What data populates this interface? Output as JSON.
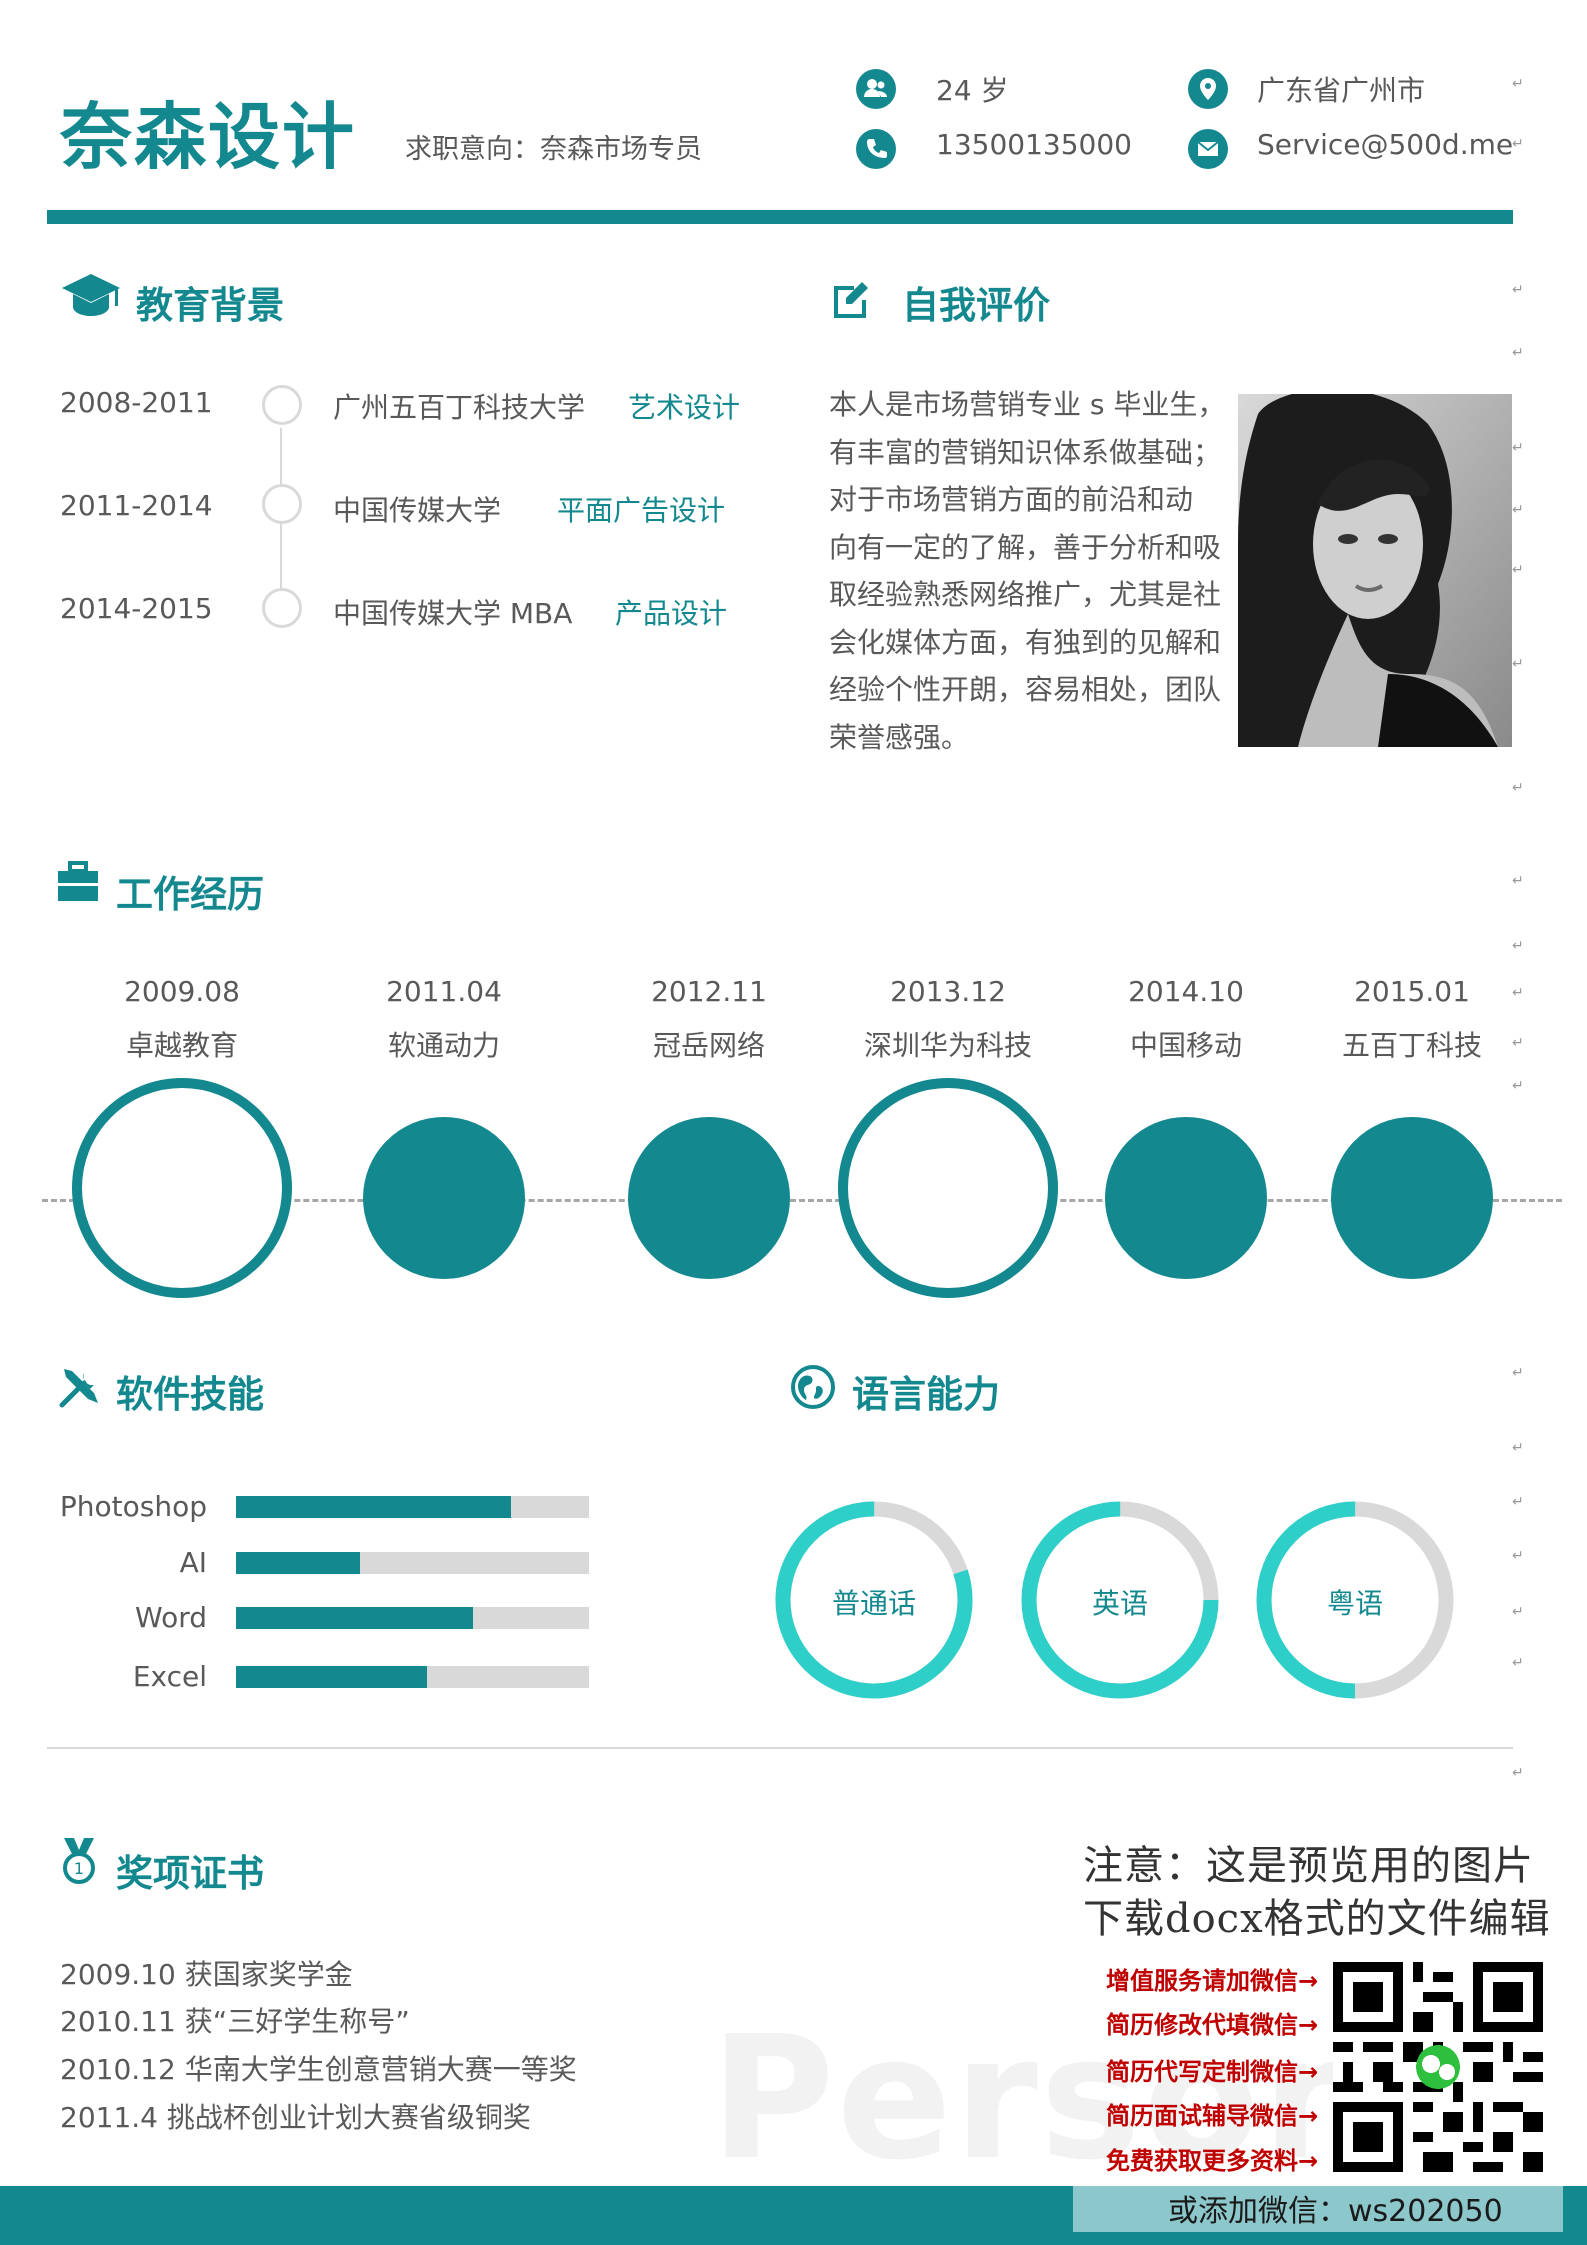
{
  "header": {
    "name": "奈森设计",
    "job_intention": "求职意向：奈森市场专员",
    "age": "24 岁",
    "location": "广东省广州市",
    "phone": "13500135000",
    "email": "Service@500d.me"
  },
  "education": {
    "title": "教育背景",
    "items": [
      {
        "date": "2008-2011",
        "school": "广州五百丁科技大学",
        "major": "艺术设计"
      },
      {
        "date": "2011-2014",
        "school": "中国传媒大学",
        "major": "平面广告设计"
      },
      {
        "date": "2014-2015",
        "school": "中国传媒大学 MBA",
        "major": "产品设计"
      }
    ]
  },
  "self_eval": {
    "title": "自我评价",
    "lines": [
      "本人是市场营销专业 s 毕业生，",
      "有丰富的营销知识体系做基础；",
      "对于市场营销方面的前沿和动",
      "向有一定的了解，善于分析和吸",
      "取经验熟悉网络推广，尤其是社",
      "会化媒体方面，有独到的见解和",
      "经验个性开朗，容易相处，团队",
      "荣誉感强。"
    ]
  },
  "work": {
    "title": "工作经历",
    "items": [
      {
        "date": "2009.08",
        "company": "卓越教育",
        "style": "ring"
      },
      {
        "date": "2011.04",
        "company": "软通动力",
        "style": "filled"
      },
      {
        "date": "2012.11",
        "company": "冠岳网络",
        "style": "filled"
      },
      {
        "date": "2013.12",
        "company": "深圳华为科技",
        "style": "ring"
      },
      {
        "date": "2014.10",
        "company": "中国移动",
        "style": "filled"
      },
      {
        "date": "2015.01",
        "company": "五百丁科技",
        "style": "filled"
      }
    ]
  },
  "skills": {
    "title": "软件技能",
    "items": [
      {
        "name": "Photoshop",
        "level": 0.78
      },
      {
        "name": "AI",
        "level": 0.35
      },
      {
        "name": "Word",
        "level": 0.67
      },
      {
        "name": "Excel",
        "level": 0.54
      }
    ]
  },
  "languages": {
    "title": "语言能力",
    "items": [
      {
        "name": "普通话",
        "level": 0.8
      },
      {
        "name": "英语",
        "level": 0.75
      },
      {
        "name": "粤语",
        "level": 0.5
      }
    ]
  },
  "awards": {
    "title": "奖项证书",
    "items": [
      "2009.10 获国家奖学金",
      "2010.11 获“三好学生称号”",
      "2010.12 华南大学生创意营销大赛一等奖",
      "2011.4 挑战杯创业计划大赛省级铜奖"
    ]
  },
  "notice": {
    "line1": "注意：这是预览用的图片",
    "line2": "下载docx格式的文件编辑",
    "promos": [
      "增值服务请加微信→",
      "简历修改代填微信→",
      "简历代写定制微信→",
      "简历面试辅导微信→",
      "免费获取更多资料→"
    ],
    "wechat": "或添加微信：ws202050"
  },
  "watermark": "Persona",
  "colors": {
    "primary": "#13888f",
    "lang_ring": "#2ecfc8",
    "track": "#d9d9d9",
    "promo_red": "#c00000"
  }
}
